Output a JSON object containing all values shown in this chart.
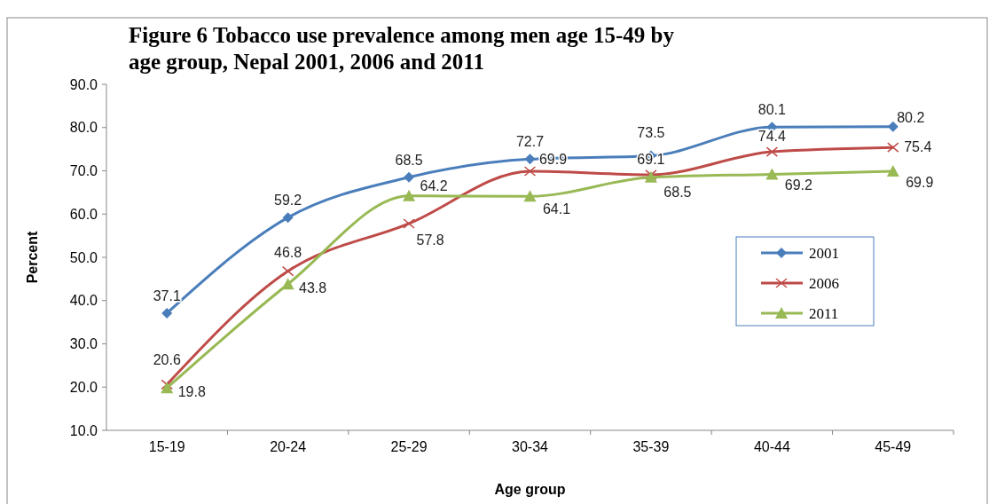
{
  "chart_data": {
    "type": "line",
    "title": "Figure  6  Tobacco use prevalence among men age 15-49 by age group, Nepal 2001, 2006 and 2011",
    "xlabel": "Age group",
    "ylabel": "Percent",
    "categories": [
      "15-19",
      "20-24",
      "25-29",
      "30-34",
      "35-39",
      "40-44",
      "45-49"
    ],
    "series": [
      {
        "name": "2001",
        "color": "#4a7ebb",
        "marker": "diamond",
        "values": [
          37.1,
          59.2,
          68.5,
          72.7,
          73.5,
          80.1,
          80.2
        ]
      },
      {
        "name": "2006",
        "color": "#be4b48",
        "marker": "cross",
        "values": [
          20.6,
          46.8,
          57.8,
          69.9,
          69.1,
          74.4,
          75.4
        ]
      },
      {
        "name": "2011",
        "color": "#98b954",
        "marker": "triangle",
        "values": [
          19.8,
          43.8,
          64.2,
          64.1,
          68.5,
          69.2,
          69.9
        ]
      }
    ],
    "ylim": [
      10,
      90
    ],
    "yticks": [
      {
        "value": 10,
        "label": "10.0"
      },
      {
        "value": 20,
        "label": "20.0"
      },
      {
        "value": 30,
        "label": "30.0"
      },
      {
        "value": 40,
        "label": "40.0"
      },
      {
        "value": 50,
        "label": "50.0"
      },
      {
        "value": 60,
        "label": "60.0"
      },
      {
        "value": 70,
        "label": "70.0"
      },
      {
        "value": 80,
        "label": "80.0"
      },
      {
        "value": 90,
        "label": "90.0"
      }
    ],
    "data_labels": true,
    "legend": "right",
    "grid": false
  }
}
